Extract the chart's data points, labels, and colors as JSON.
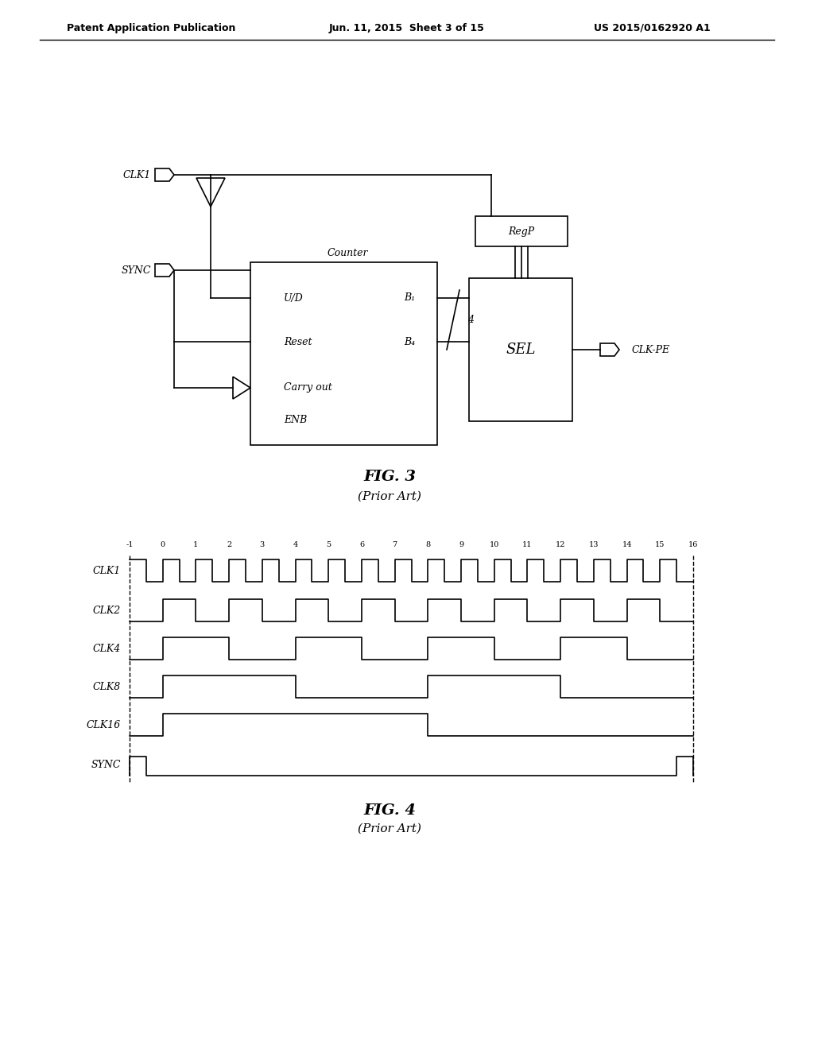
{
  "bg_color": "#ffffff",
  "header_left": "Patent Application Publication",
  "header_mid": "Jun. 11, 2015  Sheet 3 of 15",
  "header_right": "US 2015/0162920 A1",
  "fig3_title": "FIG. 3",
  "fig3_subtitle": "(Prior Art)",
  "fig4_title": "FIG. 4",
  "fig4_subtitle": "(Prior Art)",
  "line_color": "#000000",
  "text_color": "#000000"
}
